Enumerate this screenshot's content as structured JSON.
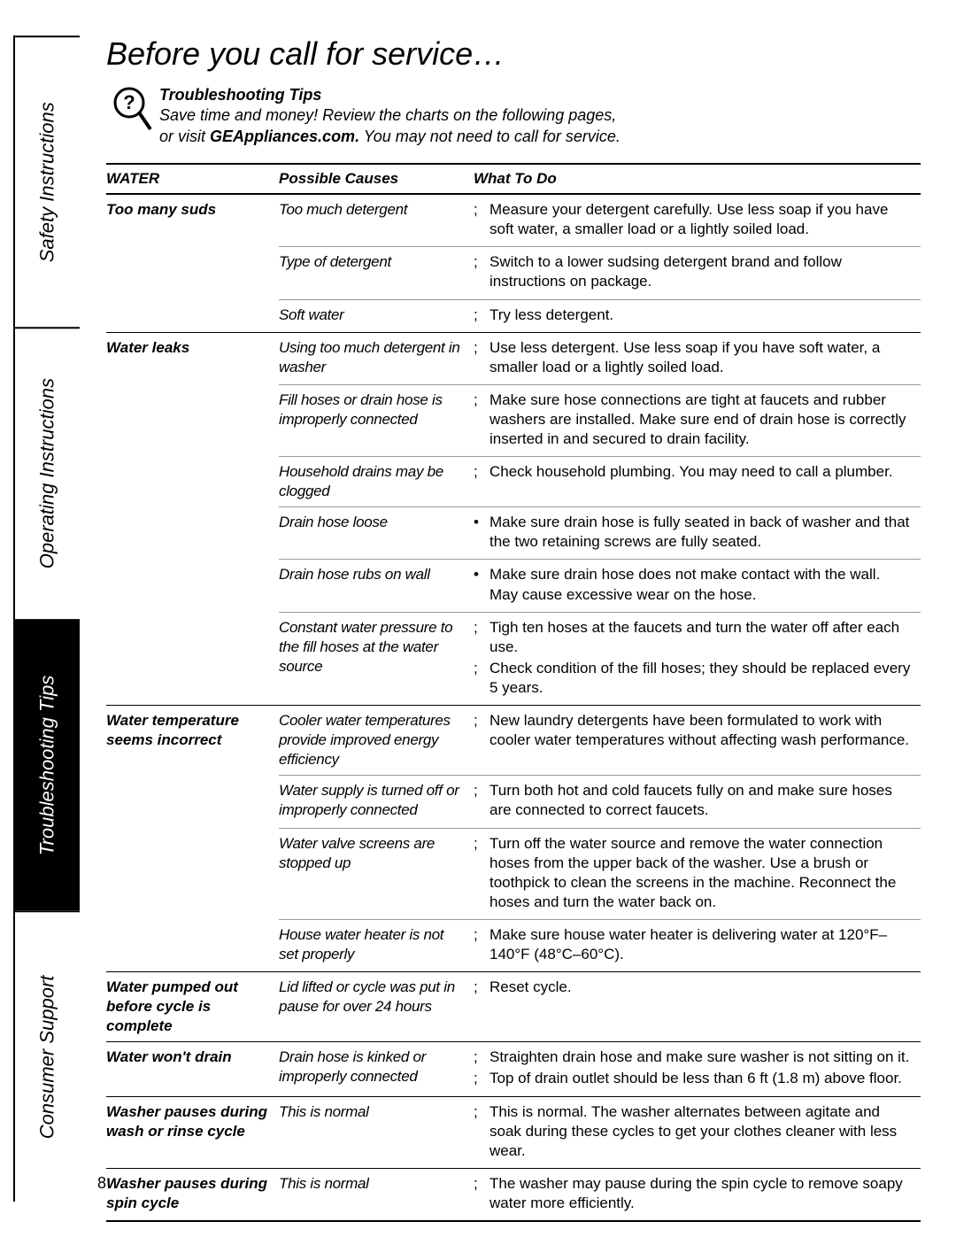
{
  "title": "Before you call for service…",
  "tips": {
    "heading": "Troubleshooting Tips",
    "line1": "Save time and money! Review the charts on the following pages,",
    "line2a": "or visit ",
    "website": "GEAppliances.com.",
    "line2b": " You may not need to call for service."
  },
  "sidebar": {
    "tabs": [
      {
        "label": "Safety Instructions",
        "active": false
      },
      {
        "label": "Operating Instructions",
        "active": false
      },
      {
        "label": "Troubleshooting Tips",
        "active": true
      },
      {
        "label": "Consumer Support",
        "active": false
      }
    ]
  },
  "table": {
    "headers": [
      "WATER",
      "Possible Causes",
      "What To Do"
    ],
    "sections": [
      {
        "problem": "Too many suds",
        "rows": [
          {
            "cause": "Too much detergent",
            "bullet": ";",
            "solution": "Measure your detergent carefully. Use less soap if you have soft water, a smaller load or a lightly soiled load."
          },
          {
            "cause": "Type of detergent",
            "bullet": ";",
            "solution": "Switch to a lower sudsing detergent brand and follow instructions on package."
          },
          {
            "cause": "Soft water",
            "bullet": ";",
            "solution": "Try less detergent."
          }
        ]
      },
      {
        "problem": "Water leaks",
        "rows": [
          {
            "cause": "Using too much detergent in washer",
            "bullet": ";",
            "solution": "Use less detergent. Use less soap if you have soft water, a smaller load or a lightly soiled load."
          },
          {
            "cause": "Fill hoses or drain hose is improperly connected",
            "bullet": ";",
            "solution": "Make sure hose connections are tight at faucets and rubber washers are installed. Make sure end of drain hose is correctly inserted in and secured to drain facility."
          },
          {
            "cause": "Household drains may be clogged",
            "bullet": ";",
            "solution": "Check household plumbing. You may need to call a plumber."
          },
          {
            "cause": "Drain hose loose",
            "bullet": "•",
            "solution": "Make sure drain hose is fully seated in back of washer and that the two retaining screws are fully seated."
          },
          {
            "cause": "Drain hose rubs on wall",
            "bullet": "•",
            "solution": "Make sure drain hose does not make contact with the wall. May cause excessive wear on the hose."
          },
          {
            "cause": "Constant water pressure to the fill hoses at the water source",
            "bullet": ";",
            "solution": "Tigh ten hoses at the faucets and turn the water off after each use.",
            "extra": {
              "bullet": ";",
              "solution": "Check condition of the fill hoses; they should be replaced every 5 years."
            }
          }
        ]
      },
      {
        "problem": "Water temperature seems incorrect",
        "rows": [
          {
            "cause": "Cooler water temperatures provide improved energy efficiency",
            "bullet": ";",
            "solution": "New laundry detergents have been formulated to work with cooler water temperatures without affecting wash performance."
          },
          {
            "cause": "Water supply is turned off or improperly connected",
            "bullet": ";",
            "solution": "Turn both hot and cold faucets fully on and make sure hoses are connected to correct faucets."
          },
          {
            "cause": "Water valve screens are stopped up",
            "bullet": ";",
            "solution": "Turn off the water source and remove the water connection hoses from the upper back of the washer. Use a brush or toothpick to clean the screens in the machine. Reconnect the hoses and turn the water back on."
          },
          {
            "cause": "House water heater is not set properly",
            "bullet": ";",
            "solution": "Make sure house water heater is delivering water at 120°F–140°F (48°C–60°C)."
          }
        ]
      },
      {
        "problem": "Water pumped out before cycle is complete",
        "rows": [
          {
            "cause": "Lid lifted or cycle was put in pause for over 24 hours",
            "bullet": ";",
            "solution": "Reset cycle."
          }
        ]
      },
      {
        "problem": "Water won't drain",
        "rows": [
          {
            "cause": "Drain hose is kinked or improperly connected",
            "bullet": ";",
            "solution": "Straighten drain hose and make sure washer is not sitting on it.",
            "extra": {
              "bullet": ";",
              "solution": "Top of drain outlet should be less than 6 ft (1.8 m) above floor."
            }
          }
        ]
      },
      {
        "problem": "Washer pauses during wash or rinse cycle",
        "rows": [
          {
            "cause": "This is normal",
            "bullet": ";",
            "solution": "This is normal. The washer alternates between agitate and soak during these cycles to get your clothes cleaner with less wear."
          }
        ]
      },
      {
        "problem": "Washer pauses during spin cycle",
        "rows": [
          {
            "cause": "This is normal",
            "bullet": ";",
            "solution": "The washer may pause during the spin cycle to remove soapy water more efficiently."
          }
        ]
      }
    ]
  },
  "pageNumber": "8"
}
